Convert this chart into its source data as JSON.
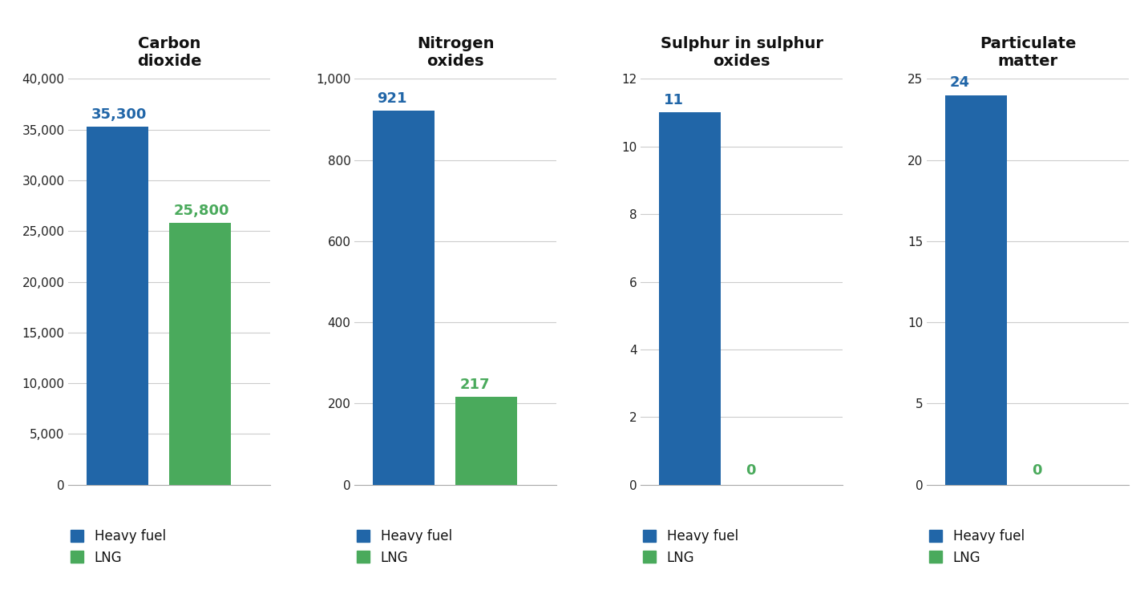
{
  "charts": [
    {
      "title": "Carbon\ndioxide",
      "heavy_fuel": 35300,
      "lng": 25800,
      "ylim": [
        0,
        40000
      ],
      "yticks": [
        0,
        5000,
        10000,
        15000,
        20000,
        25000,
        30000,
        35000,
        40000
      ],
      "ytick_labels": [
        "0",
        "5,000",
        "10,000",
        "15,000",
        "20,000",
        "25,000",
        "30,000",
        "35,000",
        "40,000"
      ],
      "label_heavy": "35,300",
      "label_lng": "25,800",
      "lng_is_zero": false
    },
    {
      "title": "Nitrogen\noxides",
      "heavy_fuel": 921,
      "lng": 217,
      "ylim": [
        0,
        1000
      ],
      "yticks": [
        0,
        200,
        400,
        600,
        800,
        1000
      ],
      "ytick_labels": [
        "0",
        "200",
        "400",
        "600",
        "800",
        "1,000"
      ],
      "label_heavy": "921",
      "label_lng": "217",
      "lng_is_zero": false
    },
    {
      "title": "Sulphur in sulphur\noxides",
      "heavy_fuel": 11,
      "lng": 0,
      "ylim": [
        0,
        12
      ],
      "yticks": [
        0,
        2,
        4,
        6,
        8,
        10,
        12
      ],
      "ytick_labels": [
        "0",
        "2",
        "4",
        "6",
        "8",
        "10",
        "12"
      ],
      "label_heavy": "11",
      "label_lng": "0",
      "lng_is_zero": true
    },
    {
      "title": "Particulate\nmatter",
      "heavy_fuel": 24,
      "lng": 0,
      "ylim": [
        0,
        25
      ],
      "yticks": [
        0,
        5,
        10,
        15,
        20,
        25
      ],
      "ytick_labels": [
        "0",
        "5",
        "10",
        "15",
        "20",
        "25"
      ],
      "label_heavy": "24",
      "label_lng": "0",
      "lng_is_zero": true
    }
  ],
  "blue_color": "#2166A8",
  "green_color": "#4AAA5C",
  "bar_width": 0.75,
  "x_heavy": 1,
  "x_lng": 2,
  "xlim": [
    0.4,
    2.85
  ],
  "background_color": "#ffffff",
  "grid_color": "#cccccc",
  "title_fontsize": 14,
  "tick_fontsize": 11,
  "label_fontsize": 13,
  "legend_fontsize": 12,
  "heavy_fuel_label": "Heavy fuel",
  "lng_label": "LNG"
}
